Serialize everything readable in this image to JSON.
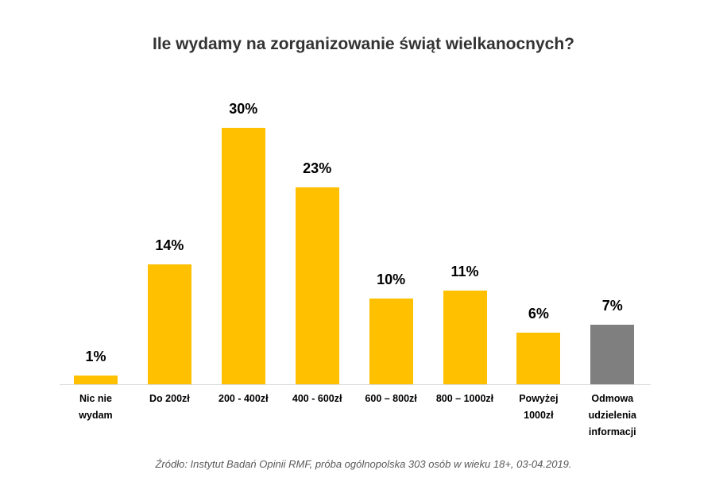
{
  "chart_data": {
    "type": "bar",
    "title": "Ile wydamy na zorganizowanie świąt wielkanocnych?",
    "categories": [
      "Nic nie\nwydam",
      "Do 200zł",
      "200 - 400zł",
      "400 - 600zł",
      "600 – 800zł",
      "800 – 1000zł",
      "Powyżej\n1000zł",
      "Odmowa\nudzielenia\ninformacji"
    ],
    "values": [
      1,
      14,
      30,
      23,
      10,
      11,
      6,
      7
    ],
    "data_labels": [
      "1%",
      "14%",
      "30%",
      "23%",
      "10%",
      "11%",
      "6%",
      "7%"
    ],
    "colors": [
      "#FFC000",
      "#FFC000",
      "#FFC000",
      "#FFC000",
      "#FFC000",
      "#FFC000",
      "#FFC000",
      "#7F7F7F"
    ],
    "unit": "%",
    "grid": false,
    "legend": "none",
    "source": "Źródło: Instytut Badań Opinii RMF, próba ogólnopolska 303 osób w wieku 18+, 03-04.2019."
  }
}
